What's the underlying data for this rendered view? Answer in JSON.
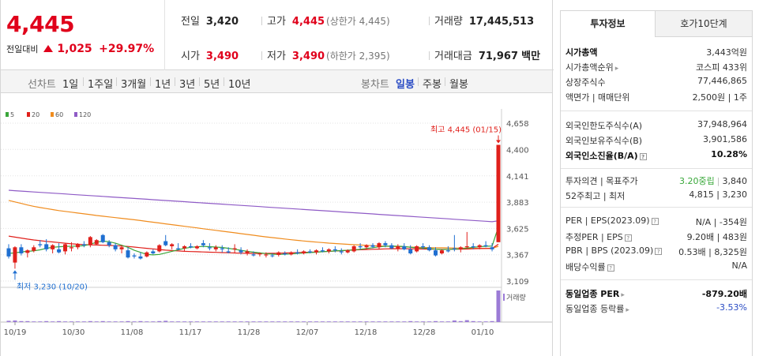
{
  "quote": {
    "price": "4,445",
    "change_label": "전일대비",
    "change_amount": "1,025",
    "change_rate": "+29.97%",
    "prev_close": {
      "label": "전일",
      "value": "3,420"
    },
    "open": {
      "label": "시가",
      "value": "3,490"
    },
    "high": {
      "label": "고가",
      "value": "4,445",
      "sub": "(상한가 4,445)"
    },
    "low": {
      "label": "저가",
      "value": "3,490",
      "sub": "(하한가 2,395)"
    },
    "volume": {
      "label": "거래량",
      "value": "17,445,513"
    },
    "turnover": {
      "label": "거래대금",
      "value": "71,967",
      "unit": "백만"
    }
  },
  "toolbar": {
    "line_label": "선차트",
    "periods": [
      "1일",
      "1주일",
      "3개월",
      "1년",
      "3년",
      "5년",
      "10년"
    ],
    "candle_label": "봉차트",
    "candle_periods": [
      "일봉",
      "주봉",
      "월봉"
    ],
    "active_candle": "일봉"
  },
  "chart_data": {
    "type": "candlestick",
    "legend": [
      {
        "name": "5",
        "color": "#3aa63a"
      },
      {
        "name": "20",
        "color": "#e0201b"
      },
      {
        "name": "60",
        "color": "#f08c1e"
      },
      {
        "name": "120",
        "color": "#8f5bc6"
      }
    ],
    "y_ticks": [
      3109,
      3367,
      3625,
      3883,
      4141,
      4400,
      4658
    ],
    "ylim": [
      3109,
      4658
    ],
    "x_labels": [
      "10/19",
      "10/30",
      "11/08",
      "11/17",
      "11/28",
      "12/07",
      "12/18",
      "12/28",
      "01/10"
    ],
    "high_annotation": "최고 4,445 (01/15)",
    "low_annotation": "최저 3,230 (10/20)",
    "volume_label": "거래량",
    "colors": {
      "up": "#e0201b",
      "down": "#1f6fd1"
    },
    "candles": [
      [
        3430,
        3470,
        3330,
        3350
      ],
      [
        3290,
        3450,
        3230,
        3440
      ],
      [
        3440,
        3470,
        3360,
        3380
      ],
      [
        3385,
        3420,
        3340,
        3410
      ],
      [
        3405,
        3460,
        3390,
        3440
      ],
      [
        3470,
        3510,
        3440,
        3460
      ],
      [
        3470,
        3520,
        3400,
        3420
      ],
      [
        3420,
        3470,
        3380,
        3460
      ],
      [
        3420,
        3480,
        3380,
        3390
      ],
      [
        3400,
        3480,
        3370,
        3470
      ],
      [
        3430,
        3490,
        3400,
        3440
      ],
      [
        3440,
        3480,
        3420,
        3470
      ],
      [
        3470,
        3500,
        3440,
        3460
      ],
      [
        3460,
        3550,
        3440,
        3540
      ],
      [
        3470,
        3520,
        3460,
        3510
      ],
      [
        3560,
        3570,
        3480,
        3490
      ],
      [
        3490,
        3510,
        3440,
        3460
      ],
      [
        3460,
        3480,
        3400,
        3420
      ],
      [
        3420,
        3460,
        3380,
        3440
      ],
      [
        3410,
        3440,
        3330,
        3340
      ],
      [
        3360,
        3380,
        3330,
        3350
      ],
      [
        3350,
        3390,
        3320,
        3330
      ],
      [
        3350,
        3400,
        3340,
        3390
      ],
      [
        3400,
        3420,
        3370,
        3380
      ],
      [
        3400,
        3470,
        3390,
        3460
      ],
      [
        3500,
        3560,
        3450,
        3460
      ],
      [
        3450,
        3480,
        3420,
        3470
      ],
      [
        3430,
        3480,
        3410,
        3420
      ],
      [
        3430,
        3460,
        3400,
        3450
      ],
      [
        3450,
        3480,
        3430,
        3440
      ],
      [
        3430,
        3460,
        3420,
        3450
      ],
      [
        3480,
        3510,
        3440,
        3460
      ],
      [
        3440,
        3480,
        3410,
        3430
      ],
      [
        3420,
        3460,
        3400,
        3440
      ],
      [
        3430,
        3460,
        3390,
        3420
      ],
      [
        3400,
        3440,
        3380,
        3390
      ],
      [
        3420,
        3470,
        3380,
        3430
      ],
      [
        3410,
        3440,
        3370,
        3390
      ],
      [
        3380,
        3420,
        3360,
        3400
      ],
      [
        3370,
        3400,
        3350,
        3360
      ],
      [
        3370,
        3390,
        3350,
        3380
      ],
      [
        3360,
        3390,
        3340,
        3370
      ],
      [
        3360,
        3380,
        3340,
        3355
      ],
      [
        3365,
        3400,
        3350,
        3390
      ],
      [
        3380,
        3400,
        3360,
        3370
      ],
      [
        3370,
        3400,
        3360,
        3390
      ],
      [
        3390,
        3420,
        3370,
        3380
      ],
      [
        3380,
        3410,
        3370,
        3400
      ],
      [
        3400,
        3420,
        3380,
        3390
      ],
      [
        3390,
        3420,
        3370,
        3410
      ],
      [
        3410,
        3440,
        3390,
        3400
      ],
      [
        3400,
        3430,
        3380,
        3420
      ],
      [
        3420,
        3450,
        3390,
        3410
      ],
      [
        3400,
        3430,
        3370,
        3390
      ],
      [
        3390,
        3420,
        3380,
        3410
      ],
      [
        3400,
        3460,
        3390,
        3450
      ],
      [
        3450,
        3480,
        3420,
        3440
      ],
      [
        3440,
        3470,
        3420,
        3460
      ],
      [
        3460,
        3480,
        3430,
        3445
      ],
      [
        3440,
        3490,
        3420,
        3480
      ],
      [
        3480,
        3500,
        3440,
        3460
      ],
      [
        3460,
        3480,
        3420,
        3430
      ],
      [
        3430,
        3470,
        3400,
        3450
      ],
      [
        3450,
        3480,
        3410,
        3420
      ],
      [
        3420,
        3460,
        3370,
        3380
      ],
      [
        3400,
        3460,
        3390,
        3450
      ],
      [
        3450,
        3480,
        3420,
        3440
      ],
      [
        3440,
        3460,
        3400,
        3410
      ],
      [
        3410,
        3440,
        3350,
        3360
      ],
      [
        3380,
        3420,
        3370,
        3410
      ],
      [
        3410,
        3450,
        3390,
        3400
      ],
      [
        3430,
        3560,
        3400,
        3420
      ],
      [
        3420,
        3450,
        3390,
        3440
      ],
      [
        3440,
        3590,
        3430,
        3450
      ],
      [
        3450,
        3480,
        3420,
        3440
      ],
      [
        3440,
        3470,
        3420,
        3460
      ],
      [
        3460,
        3500,
        3440,
        3450
      ],
      [
        3440,
        3480,
        3400,
        3420
      ],
      [
        3490,
        4445,
        3490,
        4445
      ]
    ],
    "volumes": [
      0.04,
      0.05,
      0.03,
      0.03,
      0.02,
      0.02,
      0.03,
      0.02,
      0.03,
      0.02,
      0.02,
      0.02,
      0.02,
      0.03,
      0.02,
      0.03,
      0.02,
      0.02,
      0.02,
      0.03,
      0.02,
      0.03,
      0.02,
      0.02,
      0.03,
      0.04,
      0.02,
      0.02,
      0.02,
      0.02,
      0.02,
      0.02,
      0.02,
      0.02,
      0.02,
      0.02,
      0.02,
      0.02,
      0.02,
      0.02,
      0.02,
      0.02,
      0.02,
      0.02,
      0.02,
      0.02,
      0.02,
      0.02,
      0.02,
      0.02,
      0.02,
      0.02,
      0.02,
      0.02,
      0.02,
      0.02,
      0.02,
      0.02,
      0.02,
      0.02,
      0.02,
      0.02,
      0.02,
      0.02,
      0.03,
      0.02,
      0.02,
      0.02,
      0.03,
      0.02,
      0.02,
      0.05,
      0.03,
      0.06,
      0.03,
      0.02,
      0.02,
      0.03,
      1.0
    ],
    "ma5": [
      3380,
      3385,
      3395,
      3400,
      3405,
      3415,
      3430,
      3440,
      3445,
      3448,
      3450,
      3452,
      3455,
      3470,
      3490,
      3500,
      3495,
      3480,
      3460,
      3440,
      3410,
      3390,
      3370,
      3365,
      3370,
      3385,
      3400,
      3415,
      3430,
      3440,
      3445,
      3448,
      3446,
      3442,
      3438,
      3430,
      3420,
      3410,
      3400,
      3392,
      3385,
      3378,
      3372,
      3370,
      3372,
      3375,
      3380,
      3384,
      3388,
      3392,
      3396,
      3400,
      3404,
      3408,
      3410,
      3415,
      3420,
      3428,
      3436,
      3444,
      3450,
      3452,
      3450,
      3448,
      3440,
      3435,
      3432,
      3428,
      3422,
      3418,
      3420,
      3422,
      3425,
      3432,
      3440,
      3446,
      3450,
      3452,
      3640
    ],
    "ma20": [
      3550,
      3540,
      3530,
      3520,
      3512,
      3505,
      3498,
      3492,
      3486,
      3480,
      3474,
      3470,
      3466,
      3464,
      3462,
      3460,
      3458,
      3456,
      3452,
      3448,
      3442,
      3436,
      3430,
      3424,
      3418,
      3412,
      3408,
      3404,
      3400,
      3398,
      3396,
      3394,
      3392,
      3390,
      3388,
      3386,
      3384,
      3382,
      3381,
      3380,
      3380,
      3380,
      3381,
      3382,
      3384,
      3386,
      3388,
      3390,
      3392,
      3394,
      3397,
      3400,
      3403,
      3406,
      3410,
      3413,
      3416,
      3418,
      3420,
      3422,
      3424,
      3426,
      3426,
      3426,
      3425,
      3424,
      3423,
      3422,
      3421,
      3420,
      3420,
      3421,
      3422,
      3423,
      3425,
      3427,
      3428,
      3430,
      3470
    ],
    "ma60": [
      3900,
      3885,
      3870,
      3855,
      3842,
      3830,
      3820,
      3810,
      3800,
      3792,
      3784,
      3776,
      3768,
      3760,
      3752,
      3745,
      3738,
      3731,
      3724,
      3717,
      3710,
      3702,
      3694,
      3686,
      3678,
      3670,
      3662,
      3654,
      3646,
      3638,
      3630,
      3622,
      3614,
      3606,
      3598,
      3590,
      3582,
      3574,
      3566,
      3558,
      3550,
      3542,
      3535,
      3528,
      3521,
      3514,
      3508,
      3502,
      3496,
      3491,
      3486,
      3481,
      3477,
      3473,
      3469,
      3465,
      3462,
      3459,
      3456,
      3453,
      3450,
      3448,
      3446,
      3444,
      3442,
      3440,
      3438,
      3437,
      3436,
      3435,
      3434,
      3433,
      3432,
      3431,
      3430,
      3430,
      3430,
      3430,
      3450
    ],
    "ma120": [
      4000,
      3995,
      3991,
      3987,
      3983,
      3979,
      3975,
      3971,
      3967,
      3963,
      3959,
      3955,
      3951,
      3947,
      3943,
      3939,
      3935,
      3931,
      3927,
      3923,
      3919,
      3915,
      3911,
      3907,
      3903,
      3899,
      3895,
      3891,
      3887,
      3883,
      3879,
      3875,
      3871,
      3867,
      3863,
      3859,
      3855,
      3851,
      3847,
      3843,
      3839,
      3835,
      3831,
      3827,
      3823,
      3819,
      3815,
      3811,
      3807,
      3803,
      3799,
      3795,
      3791,
      3787,
      3783,
      3779,
      3775,
      3771,
      3767,
      3763,
      3759,
      3755,
      3751,
      3747,
      3743,
      3739,
      3735,
      3731,
      3727,
      3723,
      3719,
      3715,
      3711,
      3707,
      3703,
      3699,
      3695,
      3691,
      3700
    ]
  },
  "invest": {
    "tab_active": "투자정보",
    "tab_other": "호가10단계",
    "rows1": [
      {
        "k": "시가총액",
        "v": "3,443억원",
        "bold": true
      },
      {
        "k": "시가총액순위",
        "v": "코스피 433위",
        "arrow": true
      },
      {
        "k": "상장주식수",
        "v": "77,446,865"
      },
      {
        "k": "액면가 | 매매단위",
        "v": "2,500원 | 1주"
      }
    ],
    "rows2": [
      {
        "k": "외국인한도주식수(A)",
        "v": "37,948,964"
      },
      {
        "k": "외국인보유주식수(B)",
        "v": "3,901,586"
      },
      {
        "k": "외국인소진율(B/A)",
        "v": "10.28%",
        "bold": true,
        "help": true
      }
    ],
    "opinion": {
      "k": "투자의견 | 목표주가",
      "v1": "3.20중립",
      "v2": "3,840"
    },
    "w52": {
      "k": "52주최고 | 최저",
      "v": "4,815 | 3,230"
    },
    "rows3": [
      {
        "k": "PER | EPS(2023.09)",
        "v": "N/A | -354원",
        "help": true
      },
      {
        "k": "추정PER | EPS",
        "v": "9.20배 | 483원",
        "help": true
      },
      {
        "k": "PBR | BPS (2023.09)",
        "v": "0.53배 | 8,325원",
        "help": true
      },
      {
        "k": "배당수익률",
        "v": "N/A",
        "help": true
      }
    ],
    "sector_per": {
      "k": "동일업종 PER",
      "v": "-879.20배"
    },
    "sector_rate": {
      "k": "동일업종 등락률",
      "v": "-3.53%"
    }
  }
}
